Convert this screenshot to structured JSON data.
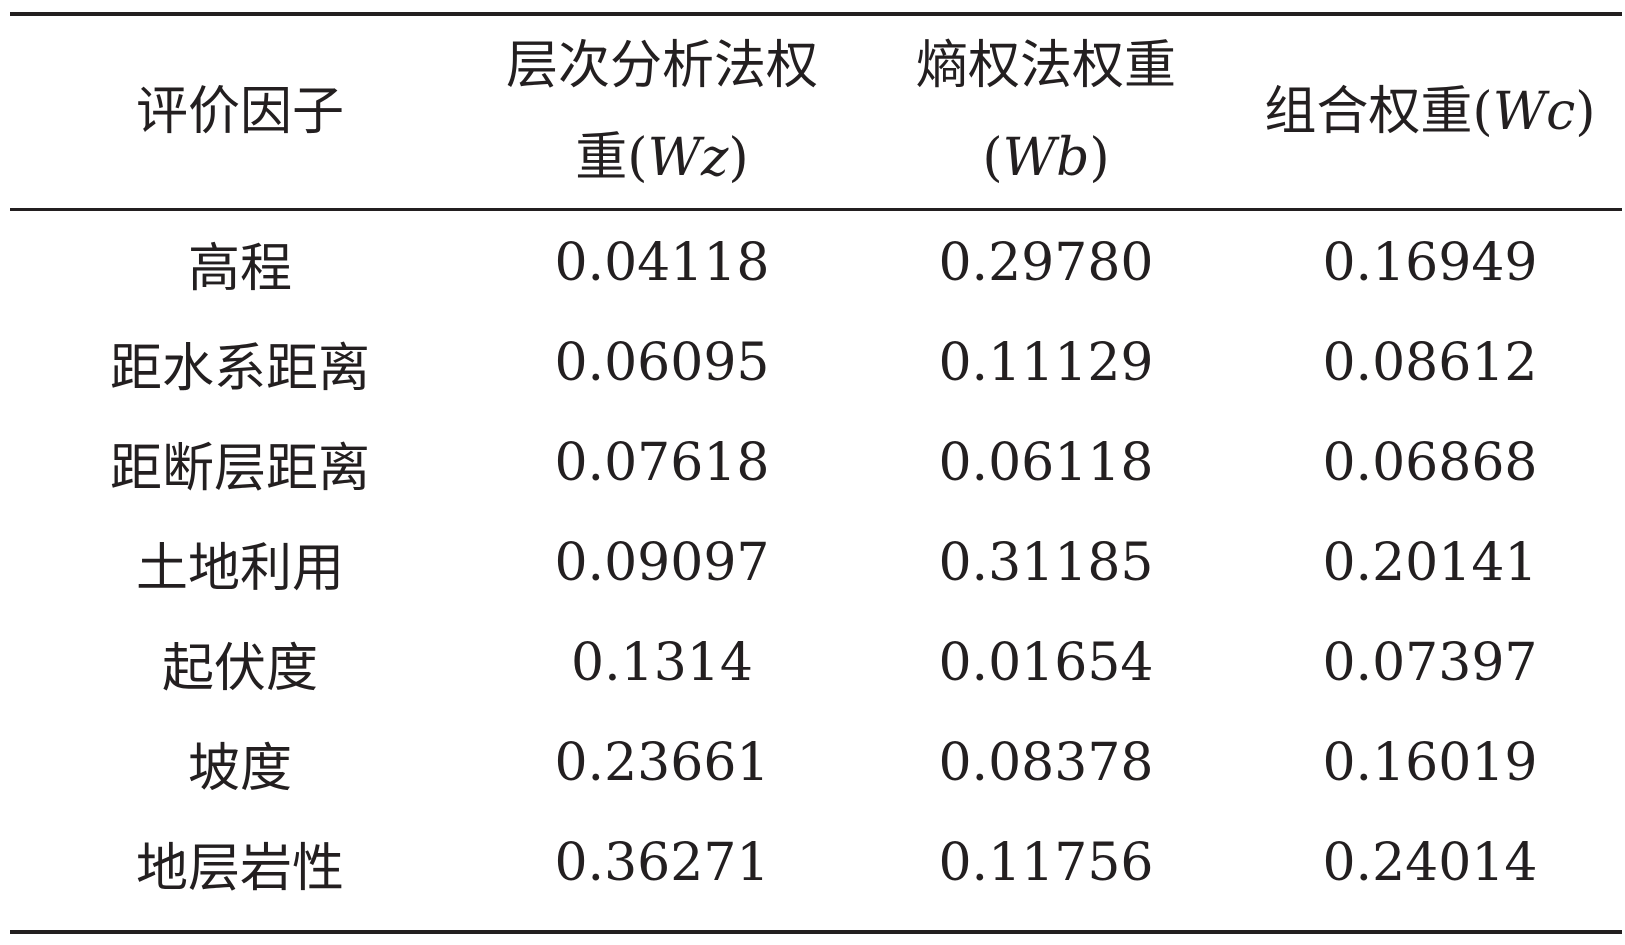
{
  "table": {
    "headers": [
      {
        "lines": [
          {
            "text": "评价因子"
          }
        ]
      },
      {
        "lines": [
          {
            "text": "层次分析法权"
          },
          {
            "prefix": "重(",
            "var": "Wz",
            "suffix": ")"
          }
        ]
      },
      {
        "lines": [
          {
            "text": "熵权法权重"
          },
          {
            "prefix": "(",
            "var": "Wb",
            "suffix": ")"
          }
        ]
      },
      {
        "lines": [
          {
            "prefix": "组合权重(",
            "var": "Wc",
            "suffix": ")"
          }
        ]
      }
    ],
    "rows": [
      {
        "factor": "高程",
        "wz": "0.04118",
        "wb": "0.29780",
        "wc": "0.16949"
      },
      {
        "factor": "距水系距离",
        "wz": "0.06095",
        "wb": "0.11129",
        "wc": "0.08612"
      },
      {
        "factor": "距断层距离",
        "wz": "0.07618",
        "wb": "0.06118",
        "wc": "0.06868"
      },
      {
        "factor": "土地利用",
        "wz": "0.09097",
        "wb": "0.31185",
        "wc": "0.20141"
      },
      {
        "factor": "起伏度",
        "wz": "0.1314",
        "wb": "0.01654",
        "wc": "0.07397"
      },
      {
        "factor": "坡度",
        "wz": "0.23661",
        "wb": "0.08378",
        "wc": "0.16019"
      },
      {
        "factor": "地层岩性",
        "wz": "0.36271",
        "wb": "0.11756",
        "wc": "0.24014"
      }
    ]
  }
}
